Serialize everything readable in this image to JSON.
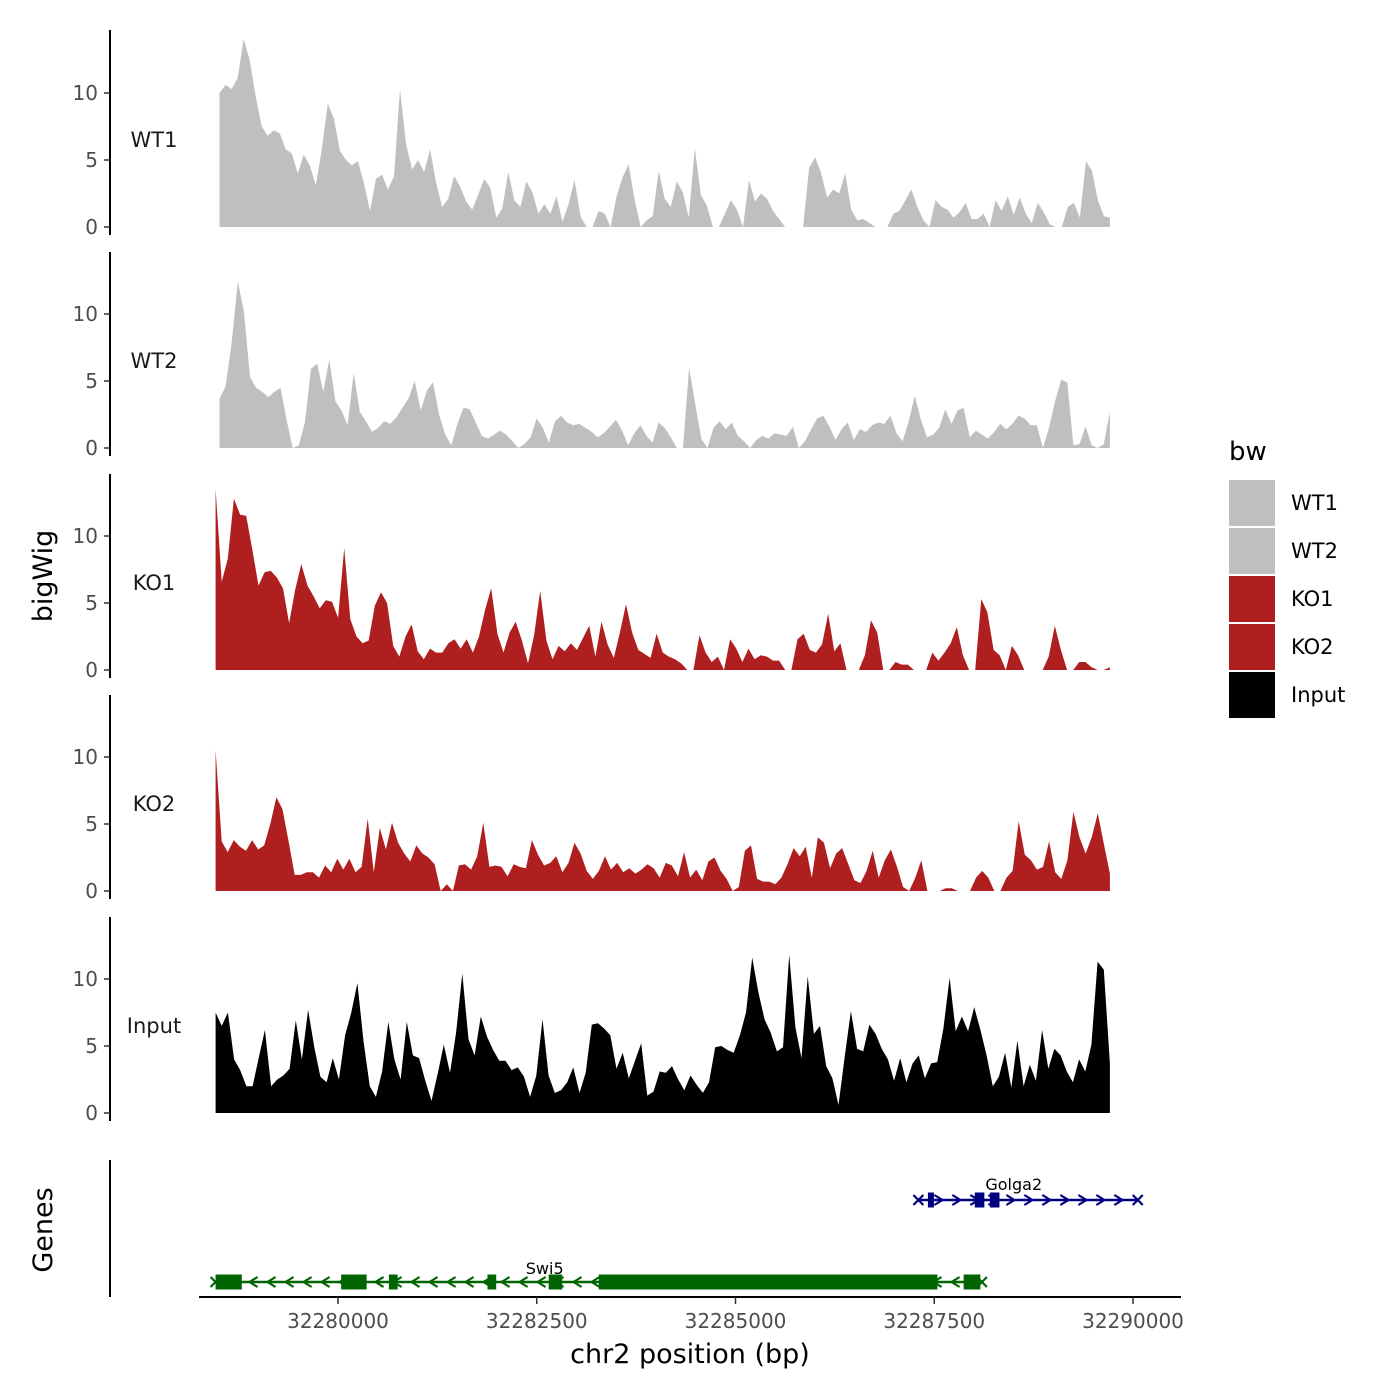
{
  "chart_data": {
    "type": "area",
    "title": "",
    "ylabel": "bigWig",
    "xlabel": "chr2 position (bp)",
    "xlim": [
      32278500,
      32290000
    ],
    "ylim": [
      0,
      14
    ],
    "y_ticks": [
      0,
      5,
      10
    ],
    "x_ticks": [
      32280000,
      32282500,
      32285000,
      32287500,
      32290000
    ],
    "x_tick_labels": [
      "32280000",
      "32282500",
      "32285000",
      "32287500",
      "32290000"
    ],
    "legend_title": "bw",
    "tracks": [
      {
        "name": "WT1",
        "color": "#bfbfbf",
        "x_start": 32278510,
        "x_end": 32289710,
        "values": [
          10.0,
          10.6,
          10.3,
          11.1,
          14.0,
          12.5,
          9.8,
          7.5,
          6.8,
          7.2,
          7.0,
          5.8,
          5.5,
          4.0,
          5.4,
          4.6,
          3.1,
          5.8,
          9.2,
          8.1,
          5.7,
          5.0,
          4.6,
          4.9,
          3.3,
          1.2,
          3.6,
          3.9,
          2.8,
          3.8,
          10.3,
          6.2,
          4.3,
          5.0,
          4.1,
          5.8,
          3.3,
          1.5,
          2.1,
          3.8,
          3.0,
          1.9,
          1.3,
          2.4,
          3.6,
          2.9,
          0.7,
          1.4,
          4.1,
          2.0,
          1.5,
          3.4,
          2.6,
          1.0,
          1.7,
          1.0,
          2.3,
          0.4,
          1.7,
          3.5,
          0.8,
          0.0,
          0.0,
          1.2,
          1.0,
          0.0,
          2.3,
          3.7,
          4.7,
          2.0,
          0.0,
          0.5,
          0.8,
          4.2,
          2.1,
          1.5,
          3.4,
          2.6,
          0.7,
          5.9,
          2.4,
          1.6,
          0.0,
          0.0,
          1.0,
          2.0,
          1.3,
          0.0,
          3.5,
          1.9,
          2.5,
          2.1,
          1.2,
          0.6,
          0.0,
          0.0,
          0.0,
          0.0,
          4.4,
          5.2,
          4.0,
          2.2,
          2.8,
          2.5,
          4.0,
          1.3,
          0.5,
          0.6,
          0.3,
          0.0,
          0.0,
          0.0,
          1.0,
          1.2,
          2.0,
          2.8,
          1.5,
          0.5,
          0.0,
          2.0,
          1.5,
          1.3,
          0.7,
          1.1,
          1.8,
          0.6,
          0.6,
          1.0,
          0.0,
          2.0,
          1.2,
          2.3,
          0.9,
          2.2,
          1.0,
          0.3,
          1.8,
          1.1,
          0.2,
          0.0,
          0.0,
          1.5,
          1.8,
          0.7,
          4.9,
          4.2,
          2.0,
          0.8,
          0.7
        ]
      },
      {
        "name": "WT2",
        "color": "#bfbfbf",
        "x_start": 32278510,
        "x_end": 32289710,
        "values": [
          3.7,
          4.6,
          7.9,
          12.4,
          10.2,
          5.3,
          4.5,
          4.2,
          3.8,
          4.2,
          4.5,
          2.1,
          0.0,
          0.2,
          1.9,
          5.9,
          6.3,
          4.2,
          6.6,
          3.5,
          2.8,
          1.7,
          5.6,
          2.7,
          2.0,
          1.2,
          1.5,
          2.0,
          1.8,
          2.3,
          3.0,
          3.7,
          5.0,
          2.8,
          4.3,
          4.9,
          2.5,
          1.0,
          0.2,
          1.8,
          3.0,
          2.9,
          1.9,
          0.9,
          0.7,
          1.0,
          1.3,
          1.0,
          0.5,
          0.0,
          0.3,
          0.8,
          2.2,
          1.5,
          0.4,
          2.0,
          2.4,
          1.9,
          1.7,
          1.8,
          1.5,
          1.2,
          0.8,
          1.1,
          1.6,
          2.1,
          1.3,
          0.2,
          1.1,
          1.7,
          0.9,
          0.4,
          1.9,
          1.5,
          0.8,
          0.0,
          0.0,
          6.0,
          3.3,
          0.7,
          0.0,
          1.5,
          2.0,
          1.4,
          1.9,
          0.9,
          0.5,
          0.0,
          0.6,
          0.9,
          0.7,
          1.1,
          1.0,
          0.9,
          1.6,
          0.0,
          0.5,
          1.4,
          2.2,
          2.4,
          1.6,
          0.6,
          1.4,
          1.9,
          0.6,
          1.4,
          1.2,
          1.7,
          1.9,
          1.8,
          2.4,
          1.1,
          0.5,
          2.0,
          3.9,
          2.1,
          0.8,
          1.0,
          1.5,
          2.9,
          1.8,
          2.8,
          3.0,
          0.8,
          1.3,
          1.0,
          0.7,
          1.2,
          1.8,
          1.4,
          1.8,
          2.4,
          2.2,
          1.7,
          1.7,
          0.0,
          1.5,
          3.5,
          5.1,
          4.9,
          0.2,
          0.3,
          1.6,
          0.2,
          0.0,
          0.3,
          2.7
        ]
      },
      {
        "name": "KO1",
        "color": "#b01f1f",
        "x_start": 32278460,
        "x_end": 32289710,
        "values": [
          13.5,
          6.6,
          8.3,
          12.8,
          11.6,
          11.5,
          9.0,
          6.3,
          7.3,
          7.4,
          6.9,
          6.1,
          3.5,
          6.0,
          7.9,
          6.3,
          5.5,
          4.6,
          5.2,
          5.1,
          3.9,
          9.1,
          3.8,
          2.5,
          2.0,
          2.2,
          4.8,
          5.8,
          5.0,
          1.8,
          1.0,
          2.5,
          3.4,
          1.4,
          0.8,
          1.6,
          1.3,
          1.3,
          2.0,
          2.3,
          1.6,
          2.3,
          1.3,
          2.5,
          4.5,
          6.1,
          2.7,
          1.3,
          2.8,
          3.6,
          2.2,
          0.5,
          2.6,
          5.9,
          2.2,
          0.8,
          1.8,
          1.4,
          2.0,
          1.5,
          2.4,
          3.3,
          1.0,
          3.6,
          1.9,
          0.9,
          2.8,
          4.9,
          2.8,
          1.5,
          1.2,
          0.9,
          2.7,
          1.3,
          1.0,
          0.8,
          0.5,
          0.0,
          0.0,
          2.6,
          1.3,
          0.6,
          1.0,
          0.0,
          2.3,
          1.6,
          0.6,
          1.6,
          0.8,
          1.1,
          1.0,
          0.7,
          0.7,
          0.0,
          0.0,
          2.3,
          2.7,
          1.5,
          1.3,
          1.9,
          4.2,
          1.4,
          2.0,
          0.0,
          0.0,
          0.0,
          1.1,
          3.7,
          2.8,
          0.0,
          0.0,
          0.6,
          0.4,
          0.4,
          0.0,
          0.0,
          0.0,
          1.3,
          0.7,
          1.3,
          2.0,
          3.2,
          1.1,
          0.0,
          0.0,
          5.3,
          4.3,
          1.5,
          1.1,
          0.0,
          1.8,
          1.1,
          0.0,
          0.0,
          0.0,
          0.0,
          1.0,
          3.3,
          1.5,
          0.0,
          0.0,
          0.6,
          0.6,
          0.2,
          0.0,
          0.0,
          0.2
        ]
      },
      {
        "name": "KO2",
        "color": "#b01f1f",
        "x_start": 32278460,
        "x_end": 32289710,
        "values": [
          10.5,
          3.7,
          2.9,
          3.8,
          3.3,
          3.0,
          3.8,
          3.1,
          3.4,
          5.0,
          7.0,
          6.1,
          3.7,
          1.2,
          1.2,
          1.4,
          1.4,
          1.0,
          1.9,
          1.4,
          2.4,
          1.6,
          2.4,
          1.4,
          1.8,
          5.4,
          1.4,
          4.7,
          3.1,
          5.1,
          3.6,
          2.8,
          2.2,
          3.4,
          2.8,
          2.5,
          2.0,
          0.0,
          0.5,
          0.0,
          1.9,
          2.0,
          1.6,
          2.6,
          5.1,
          1.8,
          1.9,
          1.8,
          1.1,
          2.0,
          1.8,
          1.7,
          3.8,
          2.7,
          1.9,
          2.1,
          2.6,
          1.4,
          2.1,
          3.6,
          2.8,
          1.5,
          0.9,
          1.5,
          2.6,
          1.6,
          2.1,
          1.4,
          1.7,
          1.3,
          1.6,
          2.0,
          1.7,
          1.0,
          2.1,
          1.9,
          1.1,
          2.9,
          1.0,
          1.6,
          0.8,
          2.2,
          2.5,
          1.5,
          0.9,
          0.0,
          0.3,
          3.0,
          3.4,
          0.9,
          0.7,
          0.7,
          0.5,
          1.0,
          2.0,
          3.2,
          2.6,
          3.3,
          1.0,
          4.0,
          3.6,
          1.7,
          2.8,
          3.2,
          2.0,
          0.8,
          0.6,
          1.5,
          3.0,
          1.0,
          2.3,
          3.1,
          1.8,
          0.3,
          0.0,
          1.0,
          2.3,
          0.0,
          0.0,
          0.0,
          0.2,
          0.2,
          0.0,
          0.0,
          0.0,
          1.0,
          1.5,
          1.0,
          0.0,
          0.0,
          1.0,
          1.5,
          5.2,
          2.7,
          2.3,
          1.6,
          1.8,
          3.7,
          1.4,
          0.9,
          2.3,
          5.9,
          4.0,
          2.8,
          4.0,
          5.8,
          3.5,
          1.3
        ]
      },
      {
        "name": "Input",
        "color": "#000000",
        "x_start": 32278460,
        "x_end": 32289710,
        "values": [
          7.5,
          6.5,
          7.5,
          4.0,
          3.2,
          2.0,
          2.0,
          4.1,
          6.2,
          2.0,
          2.5,
          2.8,
          3.3,
          6.9,
          4.0,
          7.7,
          4.9,
          2.7,
          2.3,
          4.1,
          2.5,
          5.8,
          7.5,
          9.7,
          5.3,
          2.0,
          1.2,
          3.1,
          6.8,
          4.0,
          2.5,
          6.8,
          4.3,
          4.1,
          2.4,
          0.9,
          2.9,
          5.1,
          3.0,
          6.0,
          10.4,
          5.5,
          4.3,
          7.2,
          5.7,
          4.7,
          3.9,
          3.9,
          3.2,
          3.4,
          2.7,
          1.2,
          2.8,
          7.0,
          2.8,
          1.5,
          1.7,
          2.3,
          3.4,
          1.5,
          3.0,
          6.6,
          6.7,
          6.3,
          5.8,
          3.3,
          4.5,
          2.6,
          3.9,
          5.2,
          1.3,
          1.6,
          3.1,
          3.0,
          3.5,
          2.5,
          1.7,
          2.8,
          2.1,
          1.5,
          2.3,
          4.9,
          5.0,
          4.7,
          4.5,
          5.8,
          7.5,
          11.6,
          9.0,
          7.0,
          6.0,
          4.6,
          4.9,
          11.8,
          6.4,
          4.1,
          10.2,
          5.9,
          6.5,
          3.5,
          2.6,
          0.6,
          4.2,
          7.6,
          4.8,
          4.6,
          6.6,
          5.9,
          4.8,
          4.0,
          2.4,
          4.1,
          2.3,
          3.7,
          4.3,
          2.6,
          3.7,
          3.8,
          6.3,
          10.1,
          6.1,
          7.2,
          6.1,
          7.9,
          6.2,
          4.3,
          2.0,
          2.7,
          4.5,
          1.9,
          5.4,
          2.0,
          3.6,
          2.4,
          6.2,
          3.3,
          4.8,
          4.3,
          3.1,
          2.3,
          4.0,
          3.1,
          5.1,
          11.3,
          10.7,
          3.7
        ]
      }
    ],
    "gene_track": {
      "label": "Genes",
      "genes": [
        {
          "name": "Swi5",
          "strand": "-",
          "color": "#006400",
          "start": 32278460,
          "end": 32288100,
          "exons": [
            [
              32278460,
              32278790
            ],
            [
              32280040,
              32280360
            ],
            [
              32280640,
              32280750
            ],
            [
              32281880,
              32281990
            ],
            [
              32282650,
              32282820
            ],
            [
              32283280,
              32287540
            ],
            [
              32287870,
              32288080
            ]
          ]
        },
        {
          "name": "Golga2",
          "strand": "+",
          "color": "#000080",
          "start": 32287300,
          "end": 32290060,
          "exons": [
            [
              32287420,
              32287490
            ],
            [
              32288010,
              32288130
            ],
            [
              32288200,
              32288320
            ]
          ]
        }
      ]
    }
  }
}
